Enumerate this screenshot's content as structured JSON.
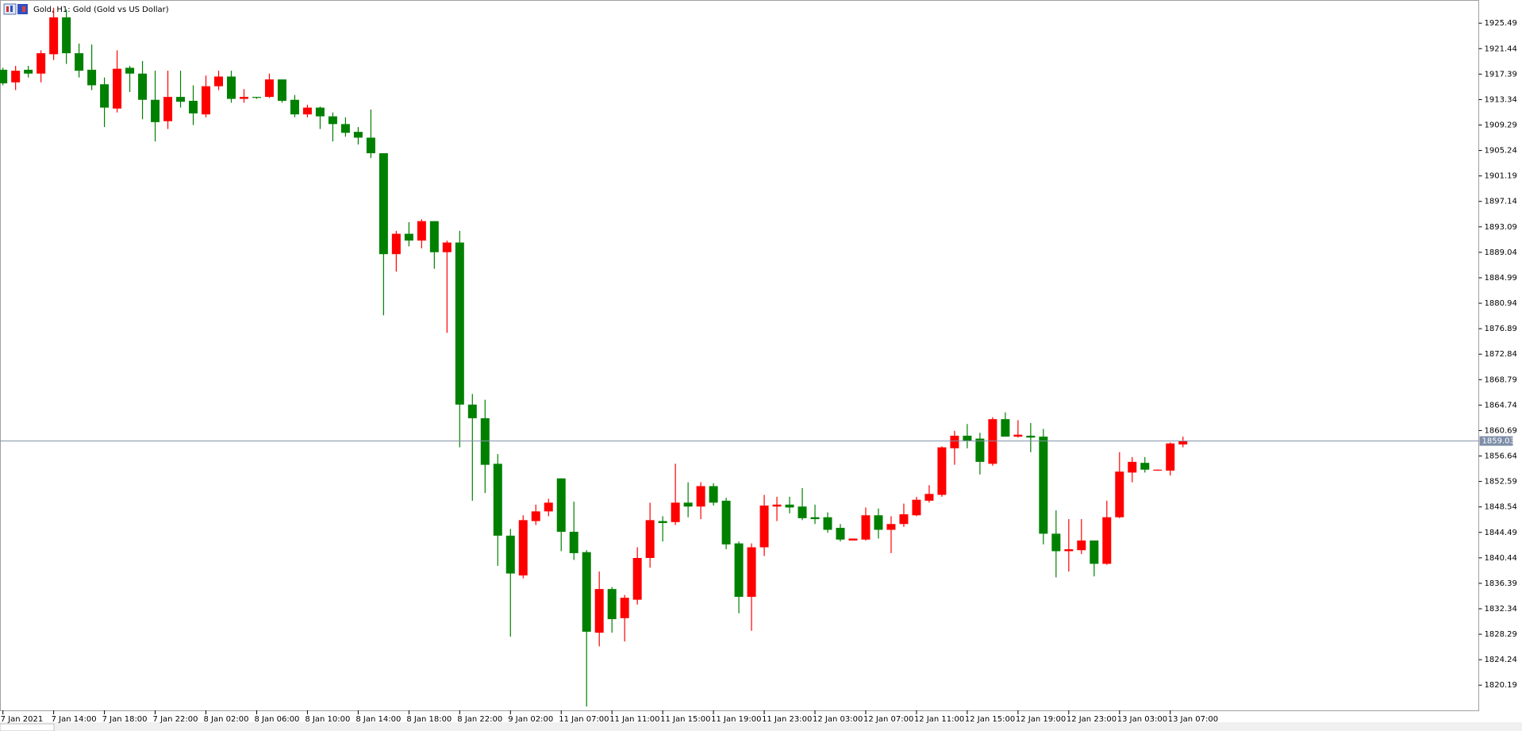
{
  "chart_data": {
    "type": "candlestick",
    "title": "Gold, H1:  Gold (Gold vs US Dollar)",
    "categories": [
      "7 Jan 2021",
      null,
      null,
      null,
      "7 Jan 14:00",
      null,
      null,
      null,
      "7 Jan 18:00",
      null,
      null,
      null,
      "7 Jan 22:00",
      null,
      null,
      null,
      "8 Jan 02:00",
      null,
      null,
      null,
      "8 Jan 06:00",
      null,
      null,
      null,
      "8 Jan 10:00",
      null,
      null,
      null,
      "8 Jan 14:00",
      null,
      null,
      null,
      "8 Jan 18:00",
      null,
      null,
      null,
      "8 Jan 22:00",
      null,
      null,
      null,
      "9 Jan 02:00",
      null,
      null,
      null,
      "11 Jan 07:00",
      null,
      null,
      null,
      "11 Jan 11:00",
      null,
      null,
      null,
      "11 Jan 15:00",
      null,
      null,
      null,
      "11 Jan 19:00",
      null,
      null,
      null,
      "11 Jan 23:00",
      null,
      null,
      null,
      "12 Jan 03:00",
      null,
      null,
      null,
      "12 Jan 07:00",
      null,
      null,
      null,
      "12 Jan 11:00",
      null,
      null,
      null,
      "12 Jan 15:00",
      null,
      null,
      null,
      "12 Jan 19:00",
      null,
      null,
      null,
      "12 Jan 23:00",
      null,
      null,
      null,
      "13 Jan 03:00",
      null,
      null,
      null,
      "13 Jan 07:00",
      null
    ],
    "open": [
      1918.08,
      1916.08,
      1918.08,
      1917.47,
      1920.55,
      1926.42,
      1920.71,
      1918.08,
      1915.77,
      1911.91,
      1918.39,
      1917.47,
      1913.3,
      1909.9,
      1913.76,
      1913.14,
      1910.98,
      1915.46,
      1917.0,
      1913.45,
      1913.76,
      1913.76,
      1916.54,
      1913.3,
      1910.98,
      1912.06,
      1910.67,
      1909.44,
      1908.2,
      1907.28,
      1904.8,
      1888.75,
      1891.99,
      1890.91,
      1894.0,
      1889.06,
      1890.6,
      1864.82,
      1862.65,
      1855.4,
      1843.97,
      1837.64,
      1846.29,
      1847.83,
      1853.08,
      1844.59,
      1841.35,
      1828.53,
      1835.48,
      1830.85,
      1833.78,
      1840.42,
      1846.29,
      1846.13,
      1849.22,
      1848.6,
      1851.85,
      1849.53,
      1842.74,
      1834.24,
      1842.12,
      1848.6,
      1848.91,
      1848.6,
      1846.9,
      1846.9,
      1845.21,
      1843.2,
      1843.35,
      1847.21,
      1844.9,
      1845.82,
      1847.21,
      1849.53,
      1850.46,
      1857.87,
      1859.87,
      1859.41,
      1855.4,
      1862.5,
      1859.72,
      1859.87,
      1859.72,
      1844.28,
      1841.5,
      1841.66,
      1843.2,
      1839.49,
      1846.9,
      1854.01,
      1855.55,
      1854.32,
      1854.32,
      1858.48
    ],
    "high": [
      1918.39,
      1918.7,
      1918.7,
      1921.17,
      1927.96,
      1927.66,
      1922.25,
      1922.1,
      1916.85,
      1921.17,
      1918.7,
      1919.47,
      1917.93,
      1917.93,
      1917.93,
      1915.61,
      1917.16,
      1917.93,
      1917.93,
      1915.0,
      1913.76,
      1917.47,
      1916.54,
      1914.07,
      1912.52,
      1912.22,
      1911.29,
      1910.52,
      1908.97,
      1911.75,
      1904.8,
      1892.45,
      1893.84,
      1894.31,
      1894.0,
      1890.91,
      1892.45,
      1866.51,
      1865.59,
      1856.94,
      1845.05,
      1847.21,
      1848.91,
      1849.84,
      1853.08,
      1849.38,
      1841.66,
      1838.26,
      1835.79,
      1834.55,
      1842.12,
      1849.22,
      1847.06,
      1855.4,
      1852.46,
      1852.46,
      1852.31,
      1849.99,
      1843.04,
      1842.74,
      1850.46,
      1850.15,
      1850.15,
      1851.54,
      1848.91,
      1847.68,
      1845.82,
      1843.51,
      1848.45,
      1848.29,
      1847.06,
      1849.07,
      1850.15,
      1852.0,
      1858.18,
      1860.65,
      1861.73,
      1860.34,
      1862.81,
      1863.58,
      1862.34,
      1861.88,
      1860.96,
      1847.99,
      1846.6,
      1846.6,
      1843.2,
      1849.53,
      1857.25,
      1856.48,
      1856.48,
      1854.47,
      1858.79,
      1859.72
    ],
    "low": [
      1915.61,
      1914.84,
      1916.85,
      1916.08,
      1919.63,
      1919.01,
      1916.85,
      1914.84,
      1908.97,
      1911.29,
      1914.53,
      1910.21,
      1906.66,
      1908.66,
      1912.06,
      1909.28,
      1910.52,
      1914.84,
      1912.83,
      1912.83,
      1913.45,
      1913.61,
      1912.83,
      1910.52,
      1910.52,
      1908.66,
      1906.66,
      1907.43,
      1906.19,
      1904.03,
      1879.02,
      1885.97,
      1889.98,
      1889.67,
      1886.43,
      1876.24,
      1858.02,
      1849.53,
      1850.76,
      1839.18,
      1827.91,
      1837.18,
      1845.67,
      1847.06,
      1841.5,
      1840.11,
      1816.8,
      1826.37,
      1828.53,
      1827.14,
      1833.01,
      1838.88,
      1843.04,
      1845.67,
      1846.9,
      1846.6,
      1848.76,
      1841.81,
      1831.62,
      1828.84,
      1840.73,
      1846.29,
      1847.52,
      1846.44,
      1845.82,
      1844.43,
      1843.04,
      1843.2,
      1843.2,
      1843.51,
      1841.19,
      1845.36,
      1847.06,
      1849.22,
      1850.15,
      1855.24,
      1857.87,
      1853.7,
      1855.09,
      1859.72,
      1859.57,
      1857.25,
      1842.58,
      1837.33,
      1838.26,
      1841.04,
      1837.49,
      1839.34,
      1846.75,
      1852.46,
      1854.01,
      1854.32,
      1853.54,
      1858.02
    ],
    "close": [
      1915.92,
      1917.93,
      1917.47,
      1920.71,
      1926.42,
      1920.71,
      1917.93,
      1915.61,
      1912.06,
      1918.24,
      1917.47,
      1913.3,
      1909.75,
      1913.76,
      1912.99,
      1911.14,
      1915.46,
      1917.0,
      1913.45,
      1913.76,
      1913.61,
      1916.54,
      1913.14,
      1910.98,
      1912.06,
      1910.67,
      1909.44,
      1908.05,
      1907.28,
      1904.8,
      1888.75,
      1891.99,
      1890.91,
      1894.0,
      1889.06,
      1890.6,
      1864.82,
      1862.65,
      1855.24,
      1843.97,
      1837.95,
      1846.44,
      1847.83,
      1849.22,
      1844.59,
      1841.19,
      1828.69,
      1835.48,
      1830.69,
      1834.09,
      1840.42,
      1846.44,
      1845.98,
      1849.22,
      1848.6,
      1851.85,
      1849.22,
      1842.58,
      1834.24,
      1842.12,
      1848.76,
      1848.91,
      1848.45,
      1846.75,
      1846.6,
      1844.9,
      1843.35,
      1843.51,
      1847.21,
      1844.9,
      1845.82,
      1847.37,
      1849.68,
      1850.61,
      1858.02,
      1859.87,
      1859.1,
      1855.71,
      1862.5,
      1859.72,
      1860.03,
      1859.57,
      1844.28,
      1841.5,
      1841.81,
      1843.2,
      1839.49,
      1846.9,
      1854.16,
      1855.71,
      1854.47,
      1854.47,
      1858.64,
      1859.03
    ],
    "up_color": "#ff0000",
    "down_color": "#008000",
    "current_price": 1859.03,
    "ylim": [
      1816.18,
      1929.05
    ],
    "yticks": [
      1820.19,
      1824.24,
      1828.29,
      1832.34,
      1836.39,
      1840.44,
      1844.49,
      1848.54,
      1852.59,
      1856.64,
      1860.69,
      1864.74,
      1868.79,
      1872.84,
      1876.89,
      1880.94,
      1884.99,
      1889.04,
      1893.09,
      1897.14,
      1901.19,
      1905.24,
      1909.29,
      1913.34,
      1917.39,
      1921.44,
      1925.49
    ],
    "grid": false
  }
}
